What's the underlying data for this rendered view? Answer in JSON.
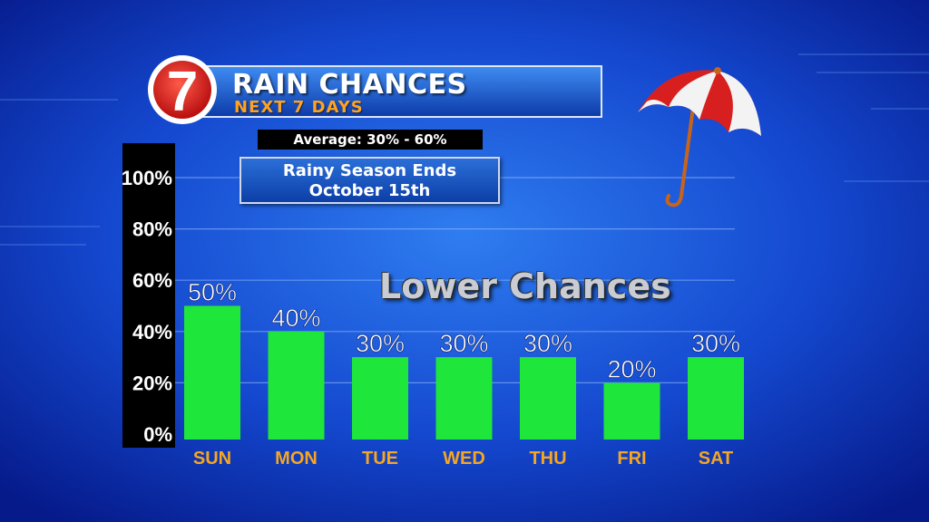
{
  "header": {
    "logo_text": "7",
    "title": "RAIN CHANCES",
    "subtitle": "NEXT 7 DAYS"
  },
  "average_label": "Average: 30% - 60%",
  "season_note": [
    "Rainy Season Ends",
    "October 15th"
  ],
  "annotation": "Lower Chances",
  "colors": {
    "bar": "#1fe63b",
    "day_label": "#f5a623",
    "axis_panel": "#000000",
    "text": "#ffffff"
  },
  "chart_data": {
    "type": "bar",
    "categories": [
      "SUN",
      "MON",
      "TUE",
      "WED",
      "THU",
      "FRI",
      "SAT"
    ],
    "values": [
      50,
      40,
      30,
      30,
      30,
      20,
      30
    ],
    "value_labels": [
      "50%",
      "40%",
      "30%",
      "30%",
      "30%",
      "20%",
      "30%"
    ],
    "y_ticks": [
      "0%",
      "20%",
      "40%",
      "60%",
      "80%",
      "100%"
    ],
    "y_tick_values": [
      0,
      20,
      40,
      60,
      80,
      100
    ],
    "ylim": [
      0,
      100
    ],
    "grid": true,
    "title": "RAIN CHANCES",
    "xlabel": "",
    "ylabel": ""
  }
}
